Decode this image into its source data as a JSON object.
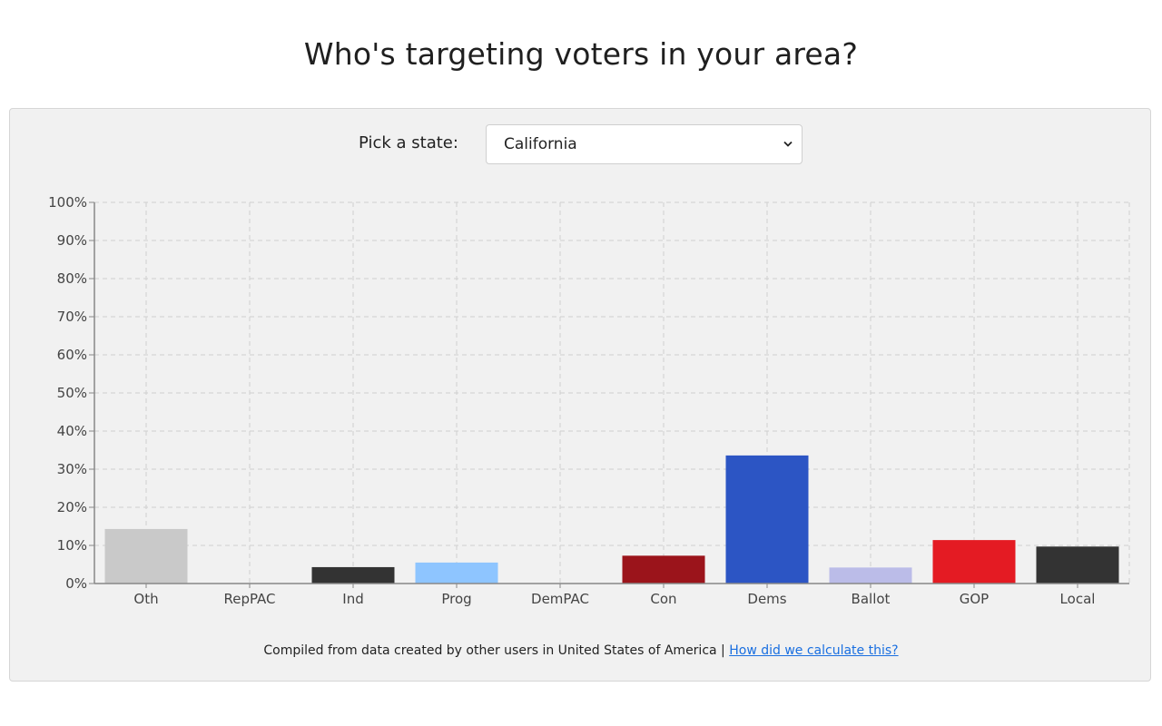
{
  "page": {
    "title": "Who's targeting voters in your area?"
  },
  "state_picker": {
    "label": "Pick a state:",
    "selected": "California"
  },
  "footer": {
    "note": "Compiled from data created by other users in United States of America |",
    "link_text": "How did we calculate this?"
  },
  "chart_data": {
    "type": "bar",
    "title": "",
    "xlabel": "",
    "ylabel": "",
    "ylim": [
      0,
      100
    ],
    "yticks": [
      "0%",
      "10%",
      "20%",
      "30%",
      "40%",
      "50%",
      "60%",
      "70%",
      "80%",
      "90%",
      "100%"
    ],
    "categories": [
      "Oth",
      "RepPAC",
      "Ind",
      "Prog",
      "DemPAC",
      "Con",
      "Dems",
      "Ballot",
      "GOP",
      "Local"
    ],
    "values": [
      14.3,
      0,
      4.3,
      5.5,
      0,
      7.3,
      33.6,
      4.2,
      11.4,
      9.7
    ],
    "colors": [
      "#c9c9c9",
      "#c9c9c9",
      "#333333",
      "#8ec5ff",
      "#c9c9c9",
      "#9b141b",
      "#2c55c4",
      "#bbbce8",
      "#e41b23",
      "#333333"
    ],
    "grid": true,
    "legend": "none"
  }
}
